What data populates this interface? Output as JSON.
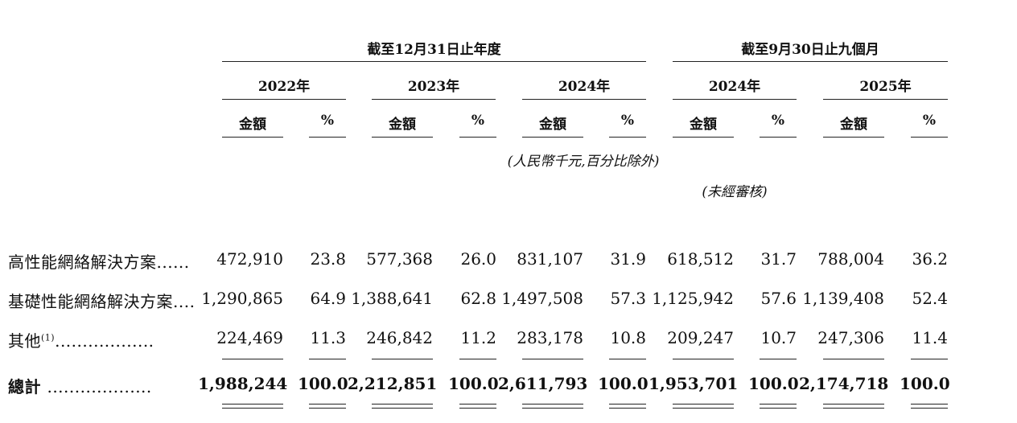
{
  "header": {
    "group1_title": "截至12月31日止年度",
    "group2_title": "截至9月30日止九個月",
    "years": [
      "2022年",
      "2023年",
      "2024年",
      "2024年",
      "2025年"
    ],
    "amount_label": "金額",
    "percent_label": "%",
    "unit_note": "(人民幣千元,百分比除外)",
    "unaudited_note": "(未經審核)"
  },
  "rows": [
    {
      "label": "高性能網絡解決方案",
      "dots": "......",
      "values": [
        "472,910",
        "23.8",
        "577,368",
        "26.0",
        "831,107",
        "31.9",
        "618,512",
        "31.7",
        "788,004",
        "36.2"
      ]
    },
    {
      "label": "基礎性能網絡解決方案",
      "dots": "....",
      "values": [
        "1,290,865",
        "64.9",
        "1,388,641",
        "62.8",
        "1,497,508",
        "57.3",
        "1,125,942",
        "57.6",
        "1,139,408",
        "52.4"
      ]
    },
    {
      "label": "其他",
      "sup": "(1)",
      "dots": "..................",
      "values": [
        "224,469",
        "11.3",
        "246,842",
        "11.2",
        "283,178",
        "10.8",
        "209,247",
        "10.7",
        "247,306",
        "11.4"
      ]
    },
    {
      "label": "總計",
      "dots": "...................",
      "values": [
        "1,988,244",
        "100.0",
        "2,212,851",
        "100.0",
        "2,611,793",
        "100.0",
        "1,953,701",
        "100.0",
        "2,174,718",
        "100.0"
      ]
    }
  ]
}
